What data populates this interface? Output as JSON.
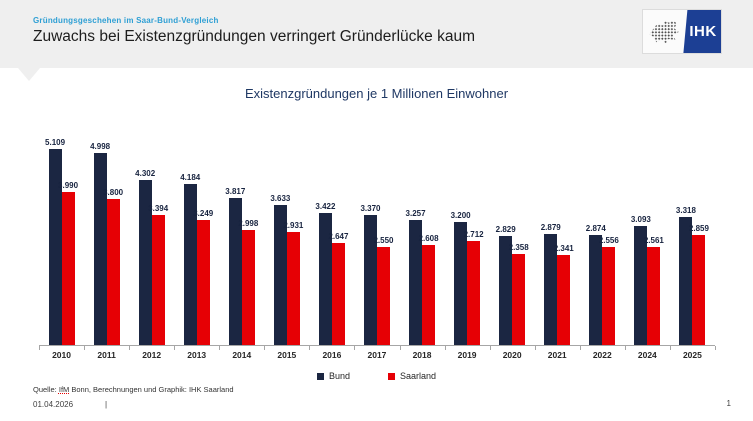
{
  "header": {
    "eyebrow": "Gründungsgeschehen im Saar-Bund-Vergleich",
    "title": "Zuwachs bei Existenzgründungen verringert Gründerlücke kaum",
    "logo_text": "IHK"
  },
  "colors": {
    "band_gray": "#efefef",
    "eyebrow_blue": "#2e9fd4",
    "logo_blue": "#1c3f94",
    "bund_navy": "#1b2642",
    "saarland_red": "#e60005"
  },
  "chart_data": {
    "type": "bar",
    "title": "Existenzgründungen je 1 Millionen Einwohner",
    "categories": [
      "2010",
      "2011",
      "2012",
      "2013",
      "2014",
      "2015",
      "2016",
      "2017",
      "2018",
      "2019",
      "2020",
      "2021",
      "2022",
      "2024",
      "2025"
    ],
    "series": [
      {
        "name": "Bund",
        "color": "#1b2642",
        "values": [
          5109,
          4998,
          4302,
          4184,
          3817,
          3633,
          3422,
          3370,
          3257,
          3200,
          2829,
          2879,
          2874,
          3093,
          3318
        ],
        "labels": [
          "5.109",
          "4.998",
          "4.302",
          "4.184",
          "3.817",
          "3.633",
          "3.422",
          "3.370",
          "3.257",
          "3.200",
          "2.829",
          "2.879",
          "2.874",
          "3.093",
          "3.318"
        ]
      },
      {
        "name": "Saarland",
        "color": "#e60005",
        "values": [
          3990,
          3800,
          3394,
          3249,
          2998,
          2931,
          2647,
          2550,
          2608,
          2712,
          2358,
          2341,
          2556,
          2561,
          2859
        ],
        "labels": [
          "3.990",
          "3.800",
          "3.394",
          "3.249",
          "2.998",
          "2.931",
          "2.647",
          "2.550",
          "2.608",
          "2.712",
          "2.358",
          "2.341",
          "2.556",
          "2.561",
          "2.859"
        ]
      }
    ],
    "ylim": [
      0,
      5200
    ],
    "grid": false,
    "legend_position": "bottom",
    "xlabel": "",
    "ylabel": ""
  },
  "footer": {
    "source_prefix": "Quelle: ",
    "source_ifm": "IfM",
    "source_rest": " Bonn, Berechnungen und Graphik: IHK Saarland",
    "date": "01.04.2026",
    "separator": "|",
    "page": "1"
  }
}
